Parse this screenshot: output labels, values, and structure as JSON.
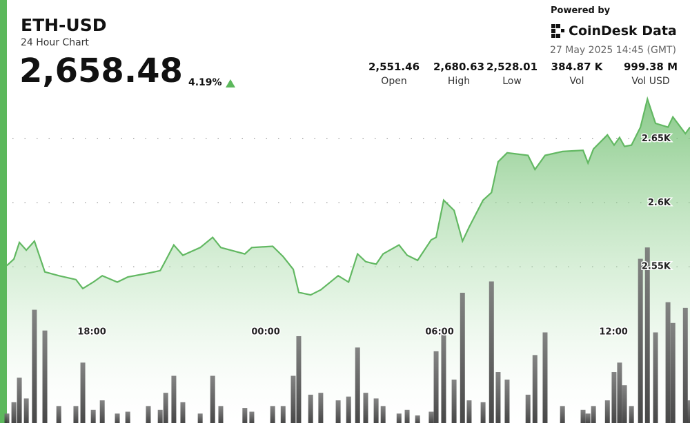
{
  "header": {
    "symbol": "ETH-USD",
    "subtitle": "24 Hour Chart",
    "price": "2,658.48",
    "change": "4.19%",
    "powered_by": "Powered by",
    "brand": "CoinDesk Data",
    "timestamp": "27 May 2025 14:45 (GMT)"
  },
  "stats": [
    {
      "value": "2,551.46",
      "label": "Open"
    },
    {
      "value": "2,680.63",
      "label": "High"
    },
    {
      "value": "2,528.01",
      "label": "Low"
    },
    {
      "value": "384.87 K",
      "label": "Vol"
    },
    {
      "value": "999.38 M",
      "label": "Vol USD"
    }
  ],
  "chart_data": {
    "type": "area",
    "color": "#62b862",
    "x": [
      15.07,
      15.31,
      15.5,
      15.74,
      16.02,
      16.38,
      16.86,
      17.45,
      17.69,
      18.05,
      18.36,
      18.88,
      19.24,
      19.95,
      20.36,
      20.55,
      20.83,
      21.14,
      21.74,
      22.17,
      22.45,
      23.28,
      23.52,
      24.24,
      24.6,
      24.95,
      25.14,
      25.55,
      25.9,
      26.5,
      26.86,
      27.17,
      27.45,
      27.81,
      28.05,
      28.6,
      28.88,
      29.24,
      29.71,
      29.88,
      30.14,
      30.5,
      30.79,
      31.02,
      31.5,
      31.79,
      32.02,
      32.33,
      33.05,
      33.29,
      33.64,
      34.24,
      34.95,
      35.12,
      35.31,
      35.79,
      36.02,
      36.21,
      36.38,
      36.62,
      36.93,
      37.17,
      37.45,
      37.88,
      38.05,
      38.48,
      38.64
    ],
    "values": [
      2551,
      2556,
      2569,
      2563,
      2570,
      2546,
      2543,
      2540,
      2533,
      2538,
      2543,
      2538,
      2542,
      2545,
      2547,
      2555,
      2567,
      2559,
      2565,
      2573,
      2565,
      2560,
      2565,
      2566,
      2558,
      2548,
      2530,
      2528,
      2532,
      2543,
      2538,
      2560,
      2554,
      2552,
      2560,
      2567,
      2559,
      2555,
      2571,
      2573,
      2602,
      2594,
      2570,
      2581,
      2602,
      2608,
      2632,
      2639,
      2637,
      2626,
      2637,
      2640,
      2641,
      2631,
      2642,
      2653,
      2645,
      2651,
      2644,
      2645,
      2659,
      2681,
      2662,
      2659,
      2667,
      2654,
      2659
    ],
    "xlim": [
      15.07,
      38.64
    ],
    "ylim": [
      2428,
      2683
    ],
    "xticks": [
      {
        "value": 18,
        "label": "18:00"
      },
      {
        "value": 24,
        "label": "00:00"
      },
      {
        "value": 30,
        "label": "06:00"
      },
      {
        "value": 36,
        "label": "12:00"
      }
    ],
    "yticks": [
      {
        "value": 2550,
        "label": "2.55K"
      },
      {
        "value": 2600,
        "label": "2.6K"
      },
      {
        "value": 2650,
        "label": "2.65K"
      }
    ],
    "grid": true,
    "volume": {
      "axis": "y2",
      "color": "#4a4a4a",
      "values": [
        5,
        11,
        24,
        13,
        60,
        49,
        9,
        9,
        32,
        7,
        12,
        5,
        6,
        9,
        7,
        16,
        25,
        11,
        5,
        25,
        9,
        8,
        6,
        9,
        9,
        25,
        46,
        15,
        16,
        12,
        14,
        40,
        16,
        13,
        9,
        5,
        7,
        4,
        6,
        38,
        50,
        23,
        69,
        12,
        11,
        75,
        27,
        23,
        15,
        36,
        48,
        9,
        7,
        5,
        9,
        12,
        27,
        32,
        20,
        9,
        87,
        93,
        48,
        64,
        53,
        61,
        12
      ]
    },
    "y2lim": [
      0,
      100
    ]
  }
}
